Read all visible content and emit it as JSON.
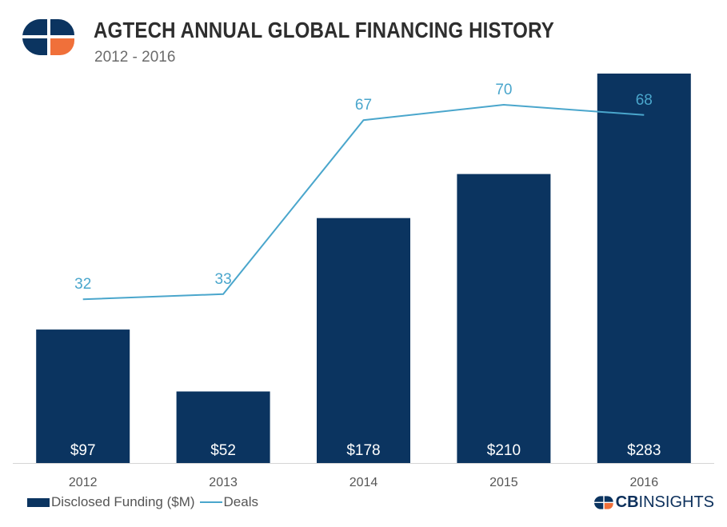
{
  "header": {
    "title": "AGTECH ANNUAL GLOBAL FINANCING HISTORY",
    "subtitle": "2012 - 2016"
  },
  "colors": {
    "bar": "#0b3460",
    "line": "#4aa6cc",
    "logo_orange": "#f0703a",
    "axis": "#d6d6d6"
  },
  "brand": {
    "cb": "CB",
    "insights": "INSIGHTS",
    "icon": "cbinsights-logo-icon"
  },
  "chart_data": {
    "type": "bar+line",
    "title": "AGTECH ANNUAL GLOBAL FINANCING HISTORY",
    "subtitle": "2012 - 2016",
    "categories": [
      "2012",
      "2013",
      "2014",
      "2015",
      "2016"
    ],
    "series": [
      {
        "name": "Disclosed Funding ($M)",
        "type": "bar",
        "values": [
          97,
          52,
          178,
          210,
          283
        ],
        "labels": [
          "$97",
          "$52",
          "$178",
          "$210",
          "$283"
        ]
      },
      {
        "name": "Deals",
        "type": "line",
        "values": [
          32,
          33,
          67,
          70,
          68
        ],
        "labels": [
          "32",
          "33",
          "67",
          "70",
          "68"
        ]
      }
    ],
    "bar_ylim": [
      0,
      283
    ],
    "line_ylim": [
      0,
      80
    ],
    "legend": "bottom-left",
    "grid": false
  }
}
